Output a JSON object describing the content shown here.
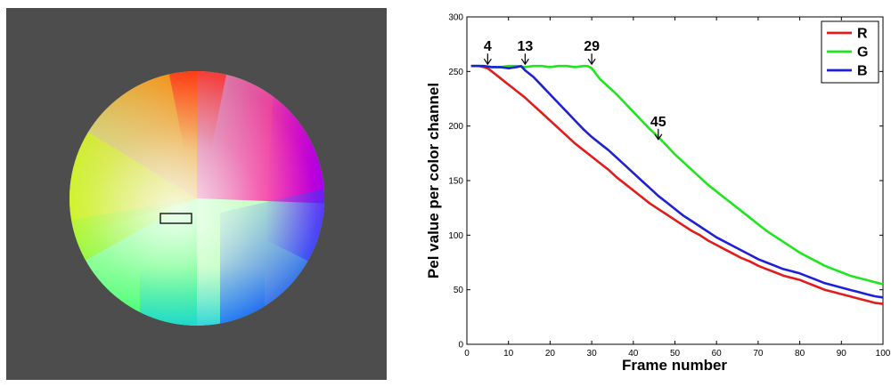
{
  "colors": {
    "panel_background": "#4d4d4d",
    "selection_outline": "#000000",
    "series_r": "#e21b1b",
    "series_g": "#1ee61e",
    "series_b": "#1f1fd6"
  },
  "chart_data": {
    "type": "line",
    "title": "",
    "xlabel": "Frame number",
    "ylabel": "Pel value per color channel",
    "xlim": [
      0,
      100
    ],
    "ylim": [
      0,
      300
    ],
    "xticks": [
      "0",
      "10",
      "20",
      "30",
      "40",
      "50",
      "60",
      "70",
      "80",
      "90",
      "100"
    ],
    "yticks": [
      "0",
      "50",
      "100",
      "150",
      "200",
      "250",
      "300"
    ],
    "grid": false,
    "legend_position": "top-right",
    "series": [
      {
        "name": "R",
        "color": "#e21b1b",
        "points": [
          [
            1,
            255
          ],
          [
            3,
            255
          ],
          [
            4,
            254
          ],
          [
            5,
            253
          ],
          [
            6,
            250
          ],
          [
            7,
            247
          ],
          [
            8,
            244
          ],
          [
            10,
            238
          ],
          [
            12,
            232
          ],
          [
            14,
            226
          ],
          [
            16,
            219
          ],
          [
            18,
            212
          ],
          [
            20,
            205
          ],
          [
            22,
            198
          ],
          [
            24,
            191
          ],
          [
            26,
            184
          ],
          [
            28,
            178
          ],
          [
            30,
            172
          ],
          [
            32,
            166
          ],
          [
            34,
            160
          ],
          [
            36,
            153
          ],
          [
            38,
            147
          ],
          [
            40,
            141
          ],
          [
            42,
            135
          ],
          [
            44,
            129
          ],
          [
            46,
            124
          ],
          [
            48,
            119
          ],
          [
            50,
            114
          ],
          [
            52,
            109
          ],
          [
            54,
            104
          ],
          [
            56,
            100
          ],
          [
            58,
            95
          ],
          [
            60,
            91
          ],
          [
            62,
            87
          ],
          [
            64,
            83
          ],
          [
            66,
            79
          ],
          [
            68,
            76
          ],
          [
            70,
            72
          ],
          [
            72,
            69
          ],
          [
            74,
            66
          ],
          [
            76,
            63
          ],
          [
            78,
            61
          ],
          [
            80,
            59
          ],
          [
            82,
            56
          ],
          [
            84,
            53
          ],
          [
            86,
            50
          ],
          [
            88,
            48
          ],
          [
            90,
            46
          ],
          [
            92,
            44
          ],
          [
            94,
            42
          ],
          [
            96,
            40
          ],
          [
            98,
            38
          ],
          [
            100,
            37
          ]
        ]
      },
      {
        "name": "G",
        "color": "#1ee61e",
        "points": [
          [
            1,
            255
          ],
          [
            4,
            255
          ],
          [
            6,
            254
          ],
          [
            8,
            254
          ],
          [
            10,
            255
          ],
          [
            12,
            255
          ],
          [
            14,
            254
          ],
          [
            16,
            255
          ],
          [
            18,
            255
          ],
          [
            20,
            254
          ],
          [
            22,
            255
          ],
          [
            24,
            255
          ],
          [
            26,
            254
          ],
          [
            28,
            255
          ],
          [
            29,
            255
          ],
          [
            30,
            253
          ],
          [
            31,
            248
          ],
          [
            32,
            243
          ],
          [
            34,
            236
          ],
          [
            36,
            229
          ],
          [
            38,
            221
          ],
          [
            40,
            213
          ],
          [
            42,
            205
          ],
          [
            44,
            197
          ],
          [
            46,
            190
          ],
          [
            48,
            182
          ],
          [
            50,
            174
          ],
          [
            52,
            167
          ],
          [
            54,
            160
          ],
          [
            56,
            153
          ],
          [
            58,
            146
          ],
          [
            60,
            140
          ],
          [
            62,
            134
          ],
          [
            64,
            128
          ],
          [
            66,
            122
          ],
          [
            68,
            116
          ],
          [
            70,
            110
          ],
          [
            72,
            104
          ],
          [
            74,
            99
          ],
          [
            76,
            94
          ],
          [
            78,
            89
          ],
          [
            80,
            84
          ],
          [
            82,
            80
          ],
          [
            84,
            76
          ],
          [
            86,
            72
          ],
          [
            88,
            69
          ],
          [
            90,
            66
          ],
          [
            92,
            63
          ],
          [
            94,
            61
          ],
          [
            96,
            59
          ],
          [
            98,
            57
          ],
          [
            100,
            55
          ]
        ]
      },
      {
        "name": "B",
        "color": "#1f1fd6",
        "points": [
          [
            1,
            255
          ],
          [
            4,
            255
          ],
          [
            6,
            254
          ],
          [
            8,
            254
          ],
          [
            10,
            253
          ],
          [
            12,
            254
          ],
          [
            13,
            255
          ],
          [
            14,
            251
          ],
          [
            16,
            245
          ],
          [
            18,
            237
          ],
          [
            20,
            229
          ],
          [
            22,
            221
          ],
          [
            24,
            213
          ],
          [
            26,
            205
          ],
          [
            28,
            197
          ],
          [
            30,
            190
          ],
          [
            32,
            184
          ],
          [
            34,
            178
          ],
          [
            36,
            171
          ],
          [
            38,
            164
          ],
          [
            40,
            157
          ],
          [
            42,
            150
          ],
          [
            44,
            143
          ],
          [
            46,
            136
          ],
          [
            48,
            130
          ],
          [
            50,
            124
          ],
          [
            52,
            118
          ],
          [
            54,
            113
          ],
          [
            56,
            108
          ],
          [
            58,
            103
          ],
          [
            60,
            98
          ],
          [
            62,
            94
          ],
          [
            64,
            90
          ],
          [
            66,
            86
          ],
          [
            68,
            82
          ],
          [
            70,
            78
          ],
          [
            72,
            75
          ],
          [
            74,
            72
          ],
          [
            76,
            69
          ],
          [
            78,
            67
          ],
          [
            80,
            65
          ],
          [
            82,
            62
          ],
          [
            84,
            59
          ],
          [
            86,
            56
          ],
          [
            88,
            54
          ],
          [
            90,
            52
          ],
          [
            92,
            50
          ],
          [
            94,
            48
          ],
          [
            96,
            46
          ],
          [
            98,
            44
          ],
          [
            100,
            43
          ]
        ]
      }
    ],
    "annotations": [
      {
        "text": "4",
        "x": 5,
        "y": 255
      },
      {
        "text": "13",
        "x": 14,
        "y": 255
      },
      {
        "text": "29",
        "x": 30,
        "y": 255
      },
      {
        "text": "45",
        "x": 46,
        "y": 186
      }
    ]
  }
}
